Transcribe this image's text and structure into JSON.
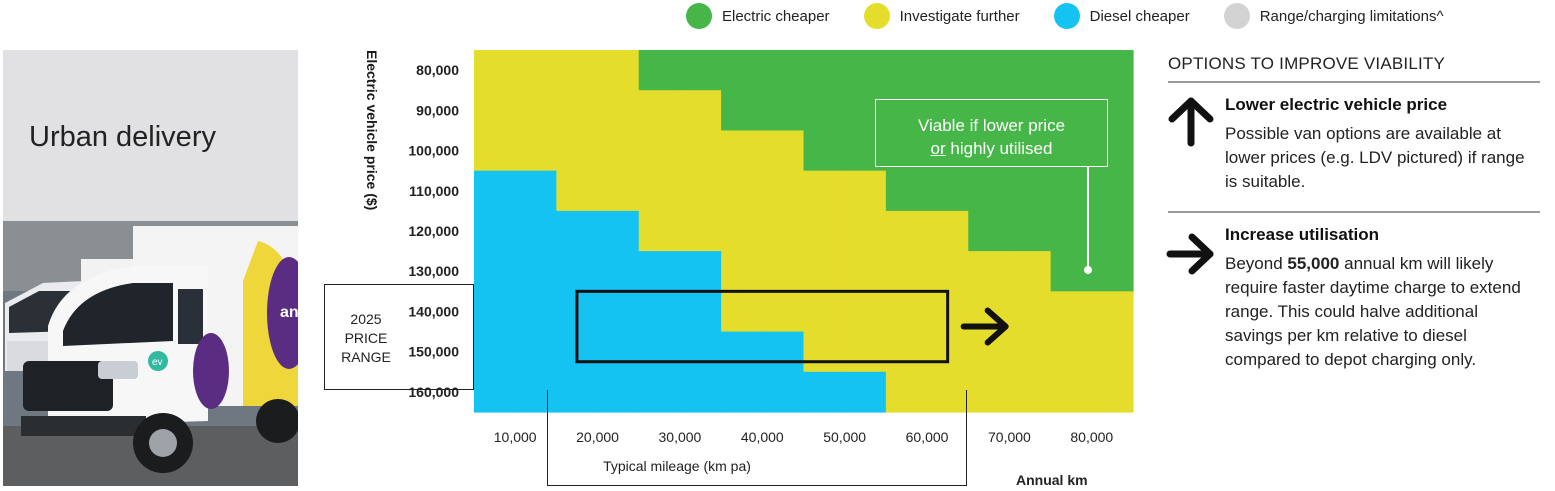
{
  "legend": [
    {
      "label": "Electric cheaper",
      "color": "#46b648"
    },
    {
      "label": "Investigate further",
      "color": "#e5dd2c"
    },
    {
      "label": "Diesel cheaper",
      "color": "#15c3f2"
    },
    {
      "label": "Range/charging limitations^",
      "color": "#d3d3d3"
    }
  ],
  "segment_title": "Urban delivery",
  "photo": {
    "icon": "delivery-van-photo",
    "logo_text": "anc",
    "badge_text": "ev"
  },
  "price_range": {
    "label_line1": "2025",
    "label_line2": "PRICE",
    "label_line3": "RANGE"
  },
  "callout": {
    "line1": "Viable if lower price",
    "line2_underlined": "or",
    "line2_rest": " highly utilised"
  },
  "options": {
    "title": "OPTIONS TO IMPROVE VIABILITY",
    "items": [
      {
        "icon": "arrow-up-icon",
        "heading": "Lower electric vehicle price",
        "body": "Possible van options are available at lower prices (e.g. LDV pictured) if range is suitable."
      },
      {
        "icon": "arrow-right-icon",
        "heading": "Increase utilisation",
        "body_pre": "Beyond ",
        "body_bold": "55,000",
        "body_post": " annual km will likely require faster daytime charge to extend range. This  could halve additional savings per km relative to diesel compared to depot charging only."
      }
    ]
  },
  "chart_data": {
    "type": "heatmap",
    "title": "",
    "xlabel": "Typical mileage (km pa)",
    "xlabel_secondary": "Annual km",
    "ylabel": "Electric vehicle price ($)",
    "x_ticks": [
      "10,000",
      "20,000",
      "30,000",
      "40,000",
      "50,000",
      "60,000",
      "70,000",
      "80,000"
    ],
    "y_ticks": [
      "80,000",
      "90,000",
      "100,000",
      "110,000",
      "120,000",
      "130,000",
      "140,000",
      "150,000",
      "160,000"
    ],
    "x_range": [
      10000,
      80000
    ],
    "y_range": [
      80000,
      160000
    ],
    "categories": {
      "G": {
        "label": "Electric cheaper",
        "color": "#46b648"
      },
      "Y": {
        "label": "Investigate further",
        "color": "#e5dd2c"
      },
      "B": {
        "label": "Diesel cheaper",
        "color": "#15c3f2"
      }
    },
    "boundary_note": "Grid rows ordered from 80,000 (top) to 160,000 (bottom); columns from 10,000 to 80,000 km in 16 half-steps of 5,000 km.",
    "grid": [
      "YYYYGGGGGGGGGGGG",
      "YYYYYYGGGGGGGGGG",
      "YYYYYYYYGGGGGGGG",
      "BBYYYYYYYYGGGGGG",
      "BBBBYYYYYYYYGGGG",
      "BBBBBBYYYYYYYYGG",
      "BBBBBBYYYYYYYYYY",
      "BBBBBBBBYYYYYYYY",
      "BBBBBBBBBBYYYYYY"
    ],
    "highlight_box": {
      "x_from": 17500,
      "x_to": 62500,
      "y_from": 135000,
      "y_to": 152500
    },
    "arrow": "right"
  }
}
